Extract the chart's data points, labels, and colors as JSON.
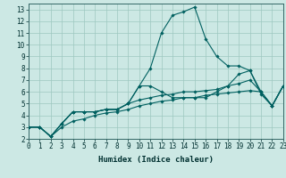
{
  "title": "",
  "xlabel": "Humidex (Indice chaleur)",
  "background_color": "#cce8e4",
  "grid_color": "#9dc8c0",
  "line_color": "#006060",
  "xlim": [
    0,
    23
  ],
  "ylim": [
    2,
    13.5
  ],
  "xticks": [
    0,
    1,
    2,
    3,
    4,
    5,
    6,
    7,
    8,
    9,
    10,
    11,
    12,
    13,
    14,
    15,
    16,
    17,
    18,
    19,
    20,
    21,
    22,
    23
  ],
  "yticks": [
    2,
    3,
    4,
    5,
    6,
    7,
    8,
    9,
    10,
    11,
    12,
    13
  ],
  "lines": [
    [
      3.0,
      3.0,
      2.2,
      3.3,
      4.3,
      4.3,
      4.3,
      4.5,
      4.5,
      5.0,
      6.5,
      8.0,
      11.0,
      12.5,
      12.8,
      13.2,
      10.5,
      9.0,
      8.2,
      8.2,
      7.8,
      5.8,
      4.8,
      6.5
    ],
    [
      3.0,
      3.0,
      2.2,
      3.3,
      4.3,
      4.3,
      4.3,
      4.5,
      4.5,
      5.0,
      6.5,
      6.5,
      6.0,
      5.5,
      5.5,
      5.5,
      5.5,
      6.0,
      6.5,
      7.5,
      7.8,
      6.0,
      4.8,
      6.5
    ],
    [
      3.0,
      3.0,
      2.2,
      3.3,
      4.3,
      4.3,
      4.3,
      4.5,
      4.5,
      5.0,
      5.3,
      5.5,
      5.7,
      5.8,
      6.0,
      6.0,
      6.1,
      6.2,
      6.5,
      6.7,
      7.0,
      6.0,
      4.8,
      6.5
    ],
    [
      3.0,
      3.0,
      2.2,
      3.0,
      3.5,
      3.7,
      4.0,
      4.2,
      4.3,
      4.5,
      4.8,
      5.0,
      5.2,
      5.3,
      5.5,
      5.5,
      5.7,
      5.8,
      5.9,
      6.0,
      6.1,
      6.0,
      4.8,
      6.5
    ]
  ],
  "tick_fontsize": 5.5,
  "xlabel_fontsize": 6.5
}
